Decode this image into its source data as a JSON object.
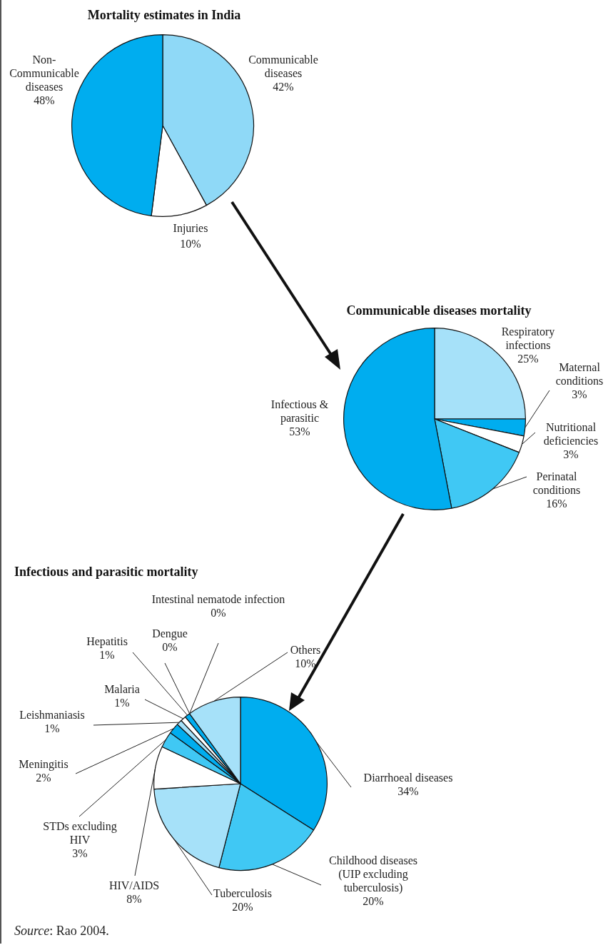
{
  "chart_data": [
    {
      "type": "pie",
      "title": "Mortality estimates in India",
      "categories": [
        "Communicable diseases",
        "Injuries",
        "Non-Communicable diseases"
      ],
      "values": [
        42,
        10,
        48
      ],
      "value_labels": [
        "42%",
        "10%",
        "48%"
      ],
      "colors": [
        "#8fd9f7",
        "#ffffff",
        "#00adef"
      ]
    },
    {
      "type": "pie",
      "title": "Communicable diseases mortality",
      "categories": [
        "Respiratory infections",
        "Maternal conditions",
        "Nutritional deficiencies",
        "Perinatal conditions",
        "Infectious & parasitic"
      ],
      "values": [
        25,
        3,
        3,
        16,
        53
      ],
      "value_labels": [
        "25%",
        "3%",
        "3%",
        "16%",
        "53%"
      ],
      "colors": [
        "#a6e1f9",
        "#00adef",
        "#ffffff",
        "#40c8f4",
        "#00adef"
      ]
    },
    {
      "type": "pie",
      "title": "Infectious and parasitic mortality",
      "categories": [
        "Diarrhoeal diseases",
        "Childhood diseases (UIP excluding tuberculosis)",
        "Tuberculosis",
        "HIV/AIDS",
        "STDs excluding HIV",
        "Meningitis",
        "Leishmaniasis",
        "Malaria",
        "Hepatitis",
        "Dengue",
        "Intestinal nematode infection",
        "Others"
      ],
      "values": [
        34,
        20,
        20,
        8,
        3,
        2,
        1,
        1,
        1,
        0,
        0,
        10
      ],
      "value_labels": [
        "34%",
        "20%",
        "20%",
        "8%",
        "3%",
        "2%",
        "1%",
        "1%",
        "1%",
        "0%",
        "0%",
        "10%"
      ],
      "colors": [
        "#00adef",
        "#40c8f4",
        "#a6e1f9",
        "#ffffff",
        "#40c8f4",
        "#00adef",
        "#a6e1f9",
        "#ffffff",
        "#00adef",
        "#ffffff",
        "#ffffff",
        "#a6e1f9"
      ],
      "annotations": [
        "Source: Rao 2004."
      ]
    }
  ]
}
